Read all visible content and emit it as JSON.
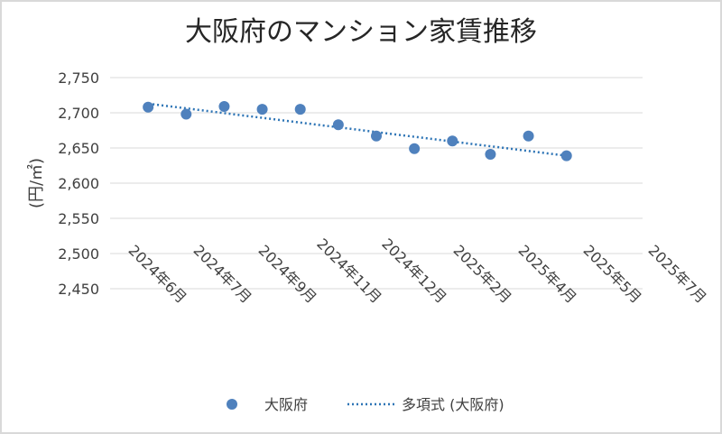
{
  "chart_data": {
    "type": "scatter",
    "title": "大阪府のマンション家賃推移",
    "xlabel": "",
    "ylabel": "(円/㎡)",
    "categories": [
      "2024年6月",
      "2024年7月",
      "2024年9月",
      "2024年11月",
      "2024年12月",
      "2025年2月",
      "2025年4月",
      "2025年5月",
      "2025年7月"
    ],
    "ylim": [
      2450,
      2750
    ],
    "yticks": [
      "2,450",
      "2,500",
      "2,550",
      "2,600",
      "2,650",
      "2,700",
      "2,750"
    ],
    "grid": true,
    "legend_position": "bottom",
    "series": [
      {
        "name": "大阪府",
        "marker_color": "#4f81bd",
        "values": [
          {
            "x": "2024-06",
            "y": 2708
          },
          {
            "x": "2024-07",
            "y": 2698
          },
          {
            "x": "2024-08",
            "y": 2709
          },
          {
            "x": "2024-09",
            "y": 2705
          },
          {
            "x": "2024-10",
            "y": 2705
          },
          {
            "x": "2024-11",
            "y": 2683
          },
          {
            "x": "2024-12",
            "y": 2667
          },
          {
            "x": "2025-01",
            "y": 2649
          },
          {
            "x": "2025-02",
            "y": 2660
          },
          {
            "x": "2025-03",
            "y": 2641
          },
          {
            "x": "2025-04",
            "y": 2667
          },
          {
            "x": "2025-05",
            "y": 2639
          }
        ]
      }
    ],
    "trendline": {
      "name": "多項式 (大阪府)",
      "color": "#2e75b6",
      "start": {
        "x": "2024-06",
        "y": 2713
      },
      "end": {
        "x": "2025-05",
        "y": 2639
      }
    }
  }
}
